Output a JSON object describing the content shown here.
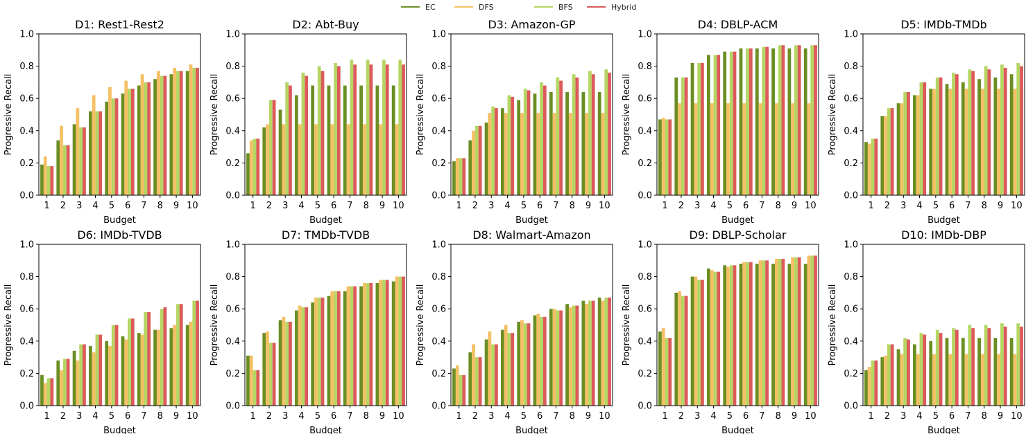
{
  "legend": [
    {
      "name": "EC",
      "color": "#6b8e23"
    },
    {
      "name": "DFS",
      "color": "#f5c065"
    },
    {
      "name": "BFS",
      "color": "#b5d663"
    },
    {
      "name": "Hybrid",
      "color": "#dc5a5a"
    }
  ],
  "chart_data": [
    {
      "type": "bar",
      "title": "D1: Rest1-Rest2",
      "xlabel": "Budget",
      "ylabel": "Progressive Recall",
      "categories": [
        "1",
        "2",
        "3",
        "4",
        "5",
        "6",
        "7",
        "8",
        "9",
        "10"
      ],
      "ylim": [
        0,
        1.0
      ],
      "yticks": [
        "0.0",
        "0.2",
        "0.4",
        "0.6",
        "0.8",
        "1.0"
      ],
      "series": [
        {
          "name": "EC",
          "values": [
            0.19,
            0.34,
            0.44,
            0.52,
            0.58,
            0.63,
            0.68,
            0.72,
            0.75,
            0.77
          ]
        },
        {
          "name": "DFS",
          "values": [
            0.24,
            0.43,
            0.54,
            0.62,
            0.67,
            0.71,
            0.75,
            0.77,
            0.79,
            0.81
          ]
        },
        {
          "name": "BFS",
          "values": [
            0.18,
            0.31,
            0.42,
            0.52,
            0.6,
            0.66,
            0.7,
            0.74,
            0.77,
            0.79
          ]
        },
        {
          "name": "Hybrid",
          "values": [
            0.18,
            0.31,
            0.42,
            0.52,
            0.6,
            0.66,
            0.7,
            0.74,
            0.77,
            0.79
          ]
        }
      ]
    },
    {
      "type": "bar",
      "title": "D2: Abt-Buy",
      "xlabel": "Budget",
      "ylabel": "Progressive Recall",
      "categories": [
        "1",
        "2",
        "3",
        "4",
        "5",
        "6",
        "7",
        "8",
        "9",
        "10"
      ],
      "ylim": [
        0,
        1.0
      ],
      "yticks": [
        "0.0",
        "0.2",
        "0.4",
        "0.6",
        "0.8",
        "1.0"
      ],
      "series": [
        {
          "name": "EC",
          "values": [
            0.26,
            0.42,
            0.53,
            0.62,
            0.68,
            0.68,
            0.68,
            0.68,
            0.68,
            0.68
          ]
        },
        {
          "name": "DFS",
          "values": [
            0.34,
            0.44,
            0.44,
            0.44,
            0.44,
            0.44,
            0.44,
            0.44,
            0.44,
            0.44
          ]
        },
        {
          "name": "BFS",
          "values": [
            0.35,
            0.59,
            0.7,
            0.76,
            0.8,
            0.82,
            0.84,
            0.84,
            0.84,
            0.84
          ]
        },
        {
          "name": "Hybrid",
          "values": [
            0.35,
            0.59,
            0.68,
            0.74,
            0.77,
            0.8,
            0.81,
            0.81,
            0.81,
            0.81
          ]
        }
      ]
    },
    {
      "type": "bar",
      "title": "D3: Amazon-GP",
      "xlabel": "Budget",
      "ylabel": "Progressive Recall",
      "categories": [
        "1",
        "2",
        "3",
        "4",
        "5",
        "6",
        "7",
        "8",
        "9",
        "10"
      ],
      "ylim": [
        0,
        1.0
      ],
      "yticks": [
        "0.0",
        "0.2",
        "0.4",
        "0.6",
        "0.8",
        "1.0"
      ],
      "series": [
        {
          "name": "EC",
          "values": [
            0.21,
            0.34,
            0.45,
            0.54,
            0.59,
            0.63,
            0.64,
            0.64,
            0.64,
            0.64
          ]
        },
        {
          "name": "DFS",
          "values": [
            0.23,
            0.4,
            0.51,
            0.51,
            0.51,
            0.51,
            0.51,
            0.51,
            0.51,
            0.51
          ]
        },
        {
          "name": "BFS",
          "values": [
            0.23,
            0.43,
            0.55,
            0.62,
            0.66,
            0.7,
            0.73,
            0.75,
            0.77,
            0.78
          ]
        },
        {
          "name": "Hybrid",
          "values": [
            0.23,
            0.43,
            0.54,
            0.61,
            0.65,
            0.68,
            0.71,
            0.73,
            0.75,
            0.76
          ]
        }
      ]
    },
    {
      "type": "bar",
      "title": "D4: DBLP-ACM",
      "xlabel": "Budget",
      "ylabel": "Progressive Recall",
      "categories": [
        "1",
        "2",
        "3",
        "4",
        "5",
        "6",
        "7",
        "8",
        "9",
        "10"
      ],
      "ylim": [
        0,
        1.0
      ],
      "yticks": [
        "0.0",
        "0.2",
        "0.4",
        "0.6",
        "0.8",
        "1.0"
      ],
      "series": [
        {
          "name": "EC",
          "values": [
            0.47,
            0.73,
            0.82,
            0.87,
            0.89,
            0.91,
            0.91,
            0.91,
            0.91,
            0.91
          ]
        },
        {
          "name": "DFS",
          "values": [
            0.48,
            0.57,
            0.57,
            0.57,
            0.57,
            0.57,
            0.57,
            0.57,
            0.57,
            0.57
          ]
        },
        {
          "name": "BFS",
          "values": [
            0.47,
            0.73,
            0.82,
            0.87,
            0.89,
            0.91,
            0.92,
            0.93,
            0.93,
            0.93
          ]
        },
        {
          "name": "Hybrid",
          "values": [
            0.47,
            0.73,
            0.82,
            0.87,
            0.89,
            0.91,
            0.92,
            0.93,
            0.93,
            0.93
          ]
        }
      ]
    },
    {
      "type": "bar",
      "title": "D5: IMDb-TMDb",
      "xlabel": "Budget",
      "ylabel": "Progressive Recall",
      "categories": [
        "1",
        "2",
        "3",
        "4",
        "5",
        "6",
        "7",
        "8",
        "9",
        "10"
      ],
      "ylim": [
        0,
        1.0
      ],
      "yticks": [
        "0.0",
        "0.2",
        "0.4",
        "0.6",
        "0.8",
        "1.0"
      ],
      "series": [
        {
          "name": "EC",
          "values": [
            0.33,
            0.49,
            0.57,
            0.62,
            0.66,
            0.69,
            0.7,
            0.72,
            0.73,
            0.75
          ]
        },
        {
          "name": "DFS",
          "values": [
            0.32,
            0.49,
            0.57,
            0.62,
            0.66,
            0.66,
            0.66,
            0.66,
            0.66,
            0.66
          ]
        },
        {
          "name": "BFS",
          "values": [
            0.35,
            0.54,
            0.64,
            0.7,
            0.73,
            0.76,
            0.78,
            0.8,
            0.81,
            0.82
          ]
        },
        {
          "name": "Hybrid",
          "values": [
            0.35,
            0.54,
            0.64,
            0.7,
            0.73,
            0.75,
            0.77,
            0.78,
            0.79,
            0.8
          ]
        }
      ]
    },
    {
      "type": "bar",
      "title": "D6: IMDb-TVDB",
      "xlabel": "Budget",
      "ylabel": "Progressive Recall",
      "categories": [
        "1",
        "2",
        "3",
        "4",
        "5",
        "6",
        "7",
        "8",
        "9",
        "10"
      ],
      "ylim": [
        0,
        1.0
      ],
      "yticks": [
        "0.0",
        "0.2",
        "0.4",
        "0.6",
        "0.8",
        "1.0"
      ],
      "series": [
        {
          "name": "EC",
          "values": [
            0.19,
            0.28,
            0.34,
            0.37,
            0.4,
            0.43,
            0.45,
            0.47,
            0.48,
            0.5
          ]
        },
        {
          "name": "DFS",
          "values": [
            0.14,
            0.22,
            0.28,
            0.33,
            0.37,
            0.41,
            0.44,
            0.47,
            0.5,
            0.52
          ]
        },
        {
          "name": "BFS",
          "values": [
            0.17,
            0.29,
            0.38,
            0.44,
            0.5,
            0.54,
            0.58,
            0.6,
            0.63,
            0.65
          ]
        },
        {
          "name": "Hybrid",
          "values": [
            0.17,
            0.29,
            0.38,
            0.44,
            0.5,
            0.54,
            0.58,
            0.61,
            0.63,
            0.65
          ]
        }
      ]
    },
    {
      "type": "bar",
      "title": "D7: TMDb-TVDB",
      "xlabel": "Budget",
      "ylabel": "Progressive Recall",
      "categories": [
        "1",
        "2",
        "3",
        "4",
        "5",
        "6",
        "7",
        "8",
        "9",
        "10"
      ],
      "ylim": [
        0,
        1.0
      ],
      "yticks": [
        "0.0",
        "0.2",
        "0.4",
        "0.6",
        "0.8",
        "1.0"
      ],
      "series": [
        {
          "name": "EC",
          "values": [
            0.31,
            0.45,
            0.53,
            0.59,
            0.64,
            0.68,
            0.71,
            0.74,
            0.76,
            0.77
          ]
        },
        {
          "name": "DFS",
          "values": [
            0.31,
            0.46,
            0.55,
            0.62,
            0.67,
            0.71,
            0.74,
            0.76,
            0.78,
            0.8
          ]
        },
        {
          "name": "BFS",
          "values": [
            0.22,
            0.39,
            0.52,
            0.61,
            0.67,
            0.71,
            0.74,
            0.76,
            0.78,
            0.8
          ]
        },
        {
          "name": "Hybrid",
          "values": [
            0.22,
            0.39,
            0.52,
            0.61,
            0.67,
            0.71,
            0.74,
            0.76,
            0.78,
            0.8
          ]
        }
      ]
    },
    {
      "type": "bar",
      "title": "D8: Walmart-Amazon",
      "xlabel": "Budget",
      "ylabel": "Progressive Recall",
      "categories": [
        "1",
        "2",
        "3",
        "4",
        "5",
        "6",
        "7",
        "8",
        "9",
        "10"
      ],
      "ylim": [
        0,
        1.0
      ],
      "yticks": [
        "0.0",
        "0.2",
        "0.4",
        "0.6",
        "0.8",
        "1.0"
      ],
      "series": [
        {
          "name": "EC",
          "values": [
            0.23,
            0.33,
            0.41,
            0.47,
            0.52,
            0.56,
            0.6,
            0.63,
            0.65,
            0.67
          ]
        },
        {
          "name": "DFS",
          "values": [
            0.25,
            0.38,
            0.46,
            0.5,
            0.53,
            0.57,
            0.6,
            0.61,
            0.63,
            0.65
          ]
        },
        {
          "name": "BFS",
          "values": [
            0.19,
            0.3,
            0.38,
            0.45,
            0.51,
            0.55,
            0.59,
            0.62,
            0.65,
            0.67
          ]
        },
        {
          "name": "Hybrid",
          "values": [
            0.19,
            0.3,
            0.38,
            0.45,
            0.51,
            0.55,
            0.59,
            0.62,
            0.65,
            0.67
          ]
        }
      ]
    },
    {
      "type": "bar",
      "title": "D9: DBLP-Scholar",
      "xlabel": "Budget",
      "ylabel": "Progressive Recall",
      "categories": [
        "1",
        "2",
        "3",
        "4",
        "5",
        "6",
        "7",
        "8",
        "9",
        "10"
      ],
      "ylim": [
        0,
        1.0
      ],
      "yticks": [
        "0.0",
        "0.2",
        "0.4",
        "0.6",
        "0.8",
        "1.0"
      ],
      "series": [
        {
          "name": "EC",
          "values": [
            0.46,
            0.7,
            0.8,
            0.85,
            0.87,
            0.88,
            0.88,
            0.88,
            0.88,
            0.88
          ]
        },
        {
          "name": "DFS",
          "values": [
            0.48,
            0.71,
            0.8,
            0.84,
            0.86,
            0.89,
            0.9,
            0.91,
            0.92,
            0.93
          ]
        },
        {
          "name": "BFS",
          "values": [
            0.42,
            0.68,
            0.78,
            0.83,
            0.87,
            0.89,
            0.9,
            0.91,
            0.92,
            0.93
          ]
        },
        {
          "name": "Hybrid",
          "values": [
            0.42,
            0.68,
            0.78,
            0.83,
            0.87,
            0.89,
            0.9,
            0.91,
            0.92,
            0.93
          ]
        }
      ]
    },
    {
      "type": "bar",
      "title": "D10: IMDb-DBP",
      "xlabel": "Budget",
      "ylabel": "Progressive Recall",
      "categories": [
        "1",
        "2",
        "3",
        "4",
        "5",
        "6",
        "7",
        "8",
        "9",
        "10"
      ],
      "ylim": [
        0,
        1.0
      ],
      "yticks": [
        "0.0",
        "0.2",
        "0.4",
        "0.6",
        "0.8",
        "1.0"
      ],
      "series": [
        {
          "name": "EC",
          "values": [
            0.22,
            0.3,
            0.35,
            0.38,
            0.4,
            0.42,
            0.42,
            0.42,
            0.42,
            0.42
          ]
        },
        {
          "name": "DFS",
          "values": [
            0.24,
            0.31,
            0.32,
            0.32,
            0.32,
            0.32,
            0.32,
            0.32,
            0.32,
            0.32
          ]
        },
        {
          "name": "BFS",
          "values": [
            0.28,
            0.38,
            0.42,
            0.45,
            0.47,
            0.48,
            0.5,
            0.5,
            0.51,
            0.51
          ]
        },
        {
          "name": "Hybrid",
          "values": [
            0.28,
            0.38,
            0.41,
            0.44,
            0.45,
            0.47,
            0.48,
            0.48,
            0.49,
            0.49
          ]
        }
      ]
    }
  ]
}
